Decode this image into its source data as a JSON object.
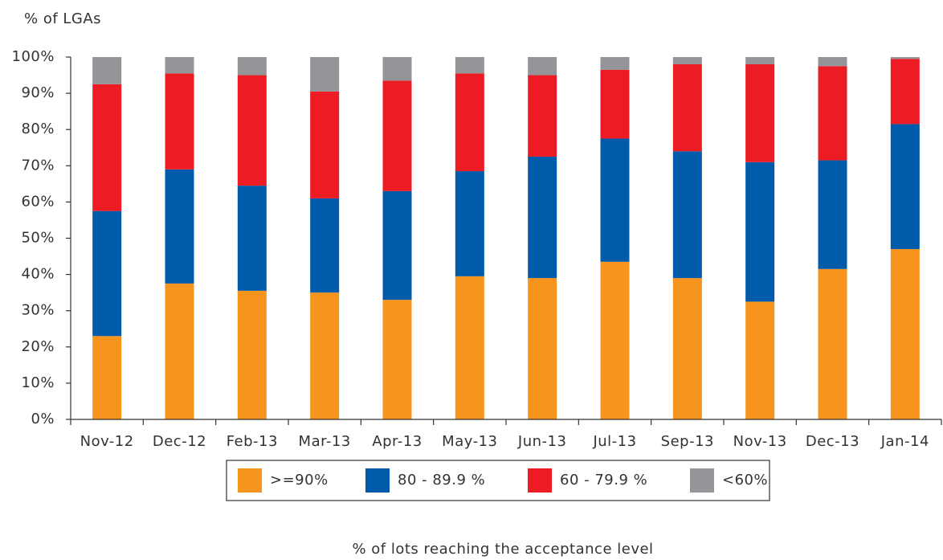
{
  "chart_data": {
    "type": "stacked_bar",
    "y_axis_title": "% of LGAs",
    "x_axis_title": "% of lots reaching the acceptance level",
    "categories": [
      "Nov-12",
      "Dec-12",
      "Feb-13",
      "Mar-13",
      "Apr-13",
      "May-13",
      "Jun-13",
      "Jul-13",
      "Sep-13",
      "Nov-13",
      "Dec-13",
      "Jan-14"
    ],
    "series": [
      {
        "name": ">=90%",
        "color": "#f7941d",
        "values": [
          23,
          37.5,
          35.5,
          35,
          33,
          39.5,
          39,
          43.5,
          39,
          32.5,
          41.5,
          47
        ]
      },
      {
        "name": "80 - 89.9 %",
        "color": "#005baa",
        "values": [
          34.5,
          31.5,
          29,
          26,
          30,
          29,
          33.5,
          34,
          35,
          38.5,
          30,
          34.5
        ]
      },
      {
        "name": "60 - 79.9 %",
        "color": "#ed1c24",
        "values": [
          35,
          26.5,
          30.5,
          29.5,
          30.5,
          27,
          22.5,
          19,
          24,
          27,
          26,
          18
        ]
      },
      {
        "name": "<60%",
        "color": "#939598",
        "values": [
          7.5,
          4.5,
          5,
          9.5,
          6.5,
          4.5,
          5,
          3.5,
          2,
          2,
          2.5,
          0.5
        ]
      }
    ],
    "ylim": [
      0,
      100
    ],
    "yticks": [
      {
        "value": 0,
        "label": "0%"
      },
      {
        "value": 10,
        "label": "10%"
      },
      {
        "value": 20,
        "label": "20%"
      },
      {
        "value": 30,
        "label": "30%"
      },
      {
        "value": 40,
        "label": "40%"
      },
      {
        "value": 50,
        "label": "50%"
      },
      {
        "value": 60,
        "label": "60%"
      },
      {
        "value": 70,
        "label": "70%"
      },
      {
        "value": 80,
        "label": "80%"
      },
      {
        "value": 90,
        "label": "90%"
      },
      {
        "value": 100,
        "label": "100%"
      }
    ],
    "grid": false,
    "legend": "bottom"
  }
}
